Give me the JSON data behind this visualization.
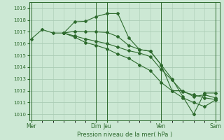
{
  "bg_color": "#cce8d4",
  "grid_color": "#aaccb4",
  "line_color": "#2d6a2d",
  "marker_color": "#2d6a2d",
  "xlabel": "Pression niveau de la mer( hPa )",
  "ylim": [
    1009.5,
    1019.5
  ],
  "yticks": [
    1010,
    1011,
    1012,
    1013,
    1014,
    1015,
    1016,
    1017,
    1018,
    1019
  ],
  "xtick_labels": [
    "Mer",
    "Dim",
    "Jeu",
    "Ven",
    "Sam"
  ],
  "xtick_positions": [
    0,
    6,
    7,
    12,
    17
  ],
  "xlim": [
    -0.2,
    17.4
  ],
  "series": [
    {
      "x": [
        0,
        1,
        2,
        3,
        4,
        5,
        6,
        7,
        8,
        9,
        10,
        11,
        12,
        13,
        14,
        15,
        16,
        17
      ],
      "y": [
        1016.4,
        1017.2,
        1016.9,
        1016.9,
        1017.85,
        1017.9,
        1018.3,
        1018.55,
        1018.55,
        1016.5,
        1015.5,
        1015.35,
        1014.2,
        1012.0,
        1012.0,
        1011.5,
        1011.65,
        1011.4
      ]
    },
    {
      "x": [
        3,
        4,
        5,
        6,
        7,
        8,
        9,
        10,
        11,
        12,
        13,
        14,
        15,
        16,
        17
      ],
      "y": [
        1016.9,
        1017.05,
        1017.0,
        1017.0,
        1016.95,
        1016.6,
        1015.85,
        1015.5,
        1015.35,
        1014.2,
        1013.0,
        1011.5,
        1010.0,
        1011.8,
        1011.8
      ]
    },
    {
      "x": [
        3,
        4,
        5,
        6,
        7,
        8,
        9,
        10,
        11,
        12,
        13,
        14,
        15,
        16,
        17
      ],
      "y": [
        1016.9,
        1016.65,
        1016.4,
        1016.2,
        1016.0,
        1015.7,
        1015.4,
        1015.2,
        1014.9,
        1013.8,
        1012.9,
        1011.9,
        1011.65,
        1011.4,
        1011.25
      ]
    },
    {
      "x": [
        3,
        4,
        5,
        6,
        7,
        8,
        9,
        10,
        11,
        12,
        13,
        14,
        15,
        16,
        17
      ],
      "y": [
        1016.9,
        1016.55,
        1016.1,
        1015.85,
        1015.55,
        1015.1,
        1014.75,
        1014.2,
        1013.7,
        1012.7,
        1012.0,
        1011.4,
        1011.0,
        1010.65,
        1011.2
      ]
    }
  ]
}
